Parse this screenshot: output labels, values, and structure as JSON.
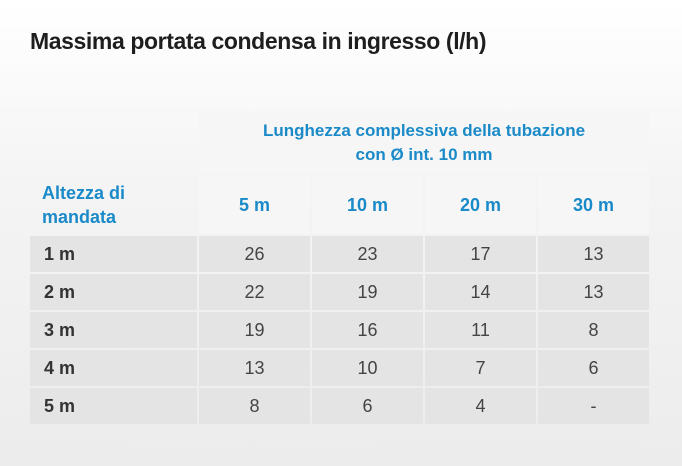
{
  "title": "Massima portata condensa in ingresso (l/h)",
  "table": {
    "group_header": [
      "Lunghezza complessiva della tubazione",
      "con Ø int. 10 mm"
    ],
    "row_header": [
      "Altezza di",
      "mandata"
    ],
    "columns": [
      "5 m",
      "10 m",
      "20 m",
      "30 m"
    ],
    "rows": [
      {
        "label": "1 m",
        "values": [
          26,
          23,
          17,
          13
        ]
      },
      {
        "label": "2 m",
        "values": [
          22,
          19,
          14,
          13
        ]
      },
      {
        "label": "3 m",
        "values": [
          19,
          16,
          11,
          8
        ]
      },
      {
        "label": "4 m",
        "values": [
          13,
          10,
          7,
          6
        ]
      },
      {
        "label": "5 m",
        "values": [
          8,
          6,
          4,
          "-"
        ]
      }
    ]
  }
}
